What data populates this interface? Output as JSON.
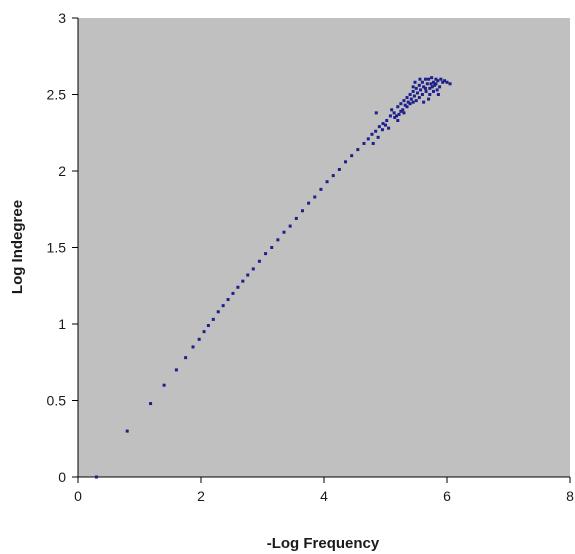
{
  "chart_data": {
    "type": "scatter",
    "title": "",
    "xlabel": "-Log Frequency",
    "ylabel": "Log Indegree",
    "xlim": [
      0,
      8
    ],
    "ylim": [
      0,
      3
    ],
    "x_ticks": [
      0,
      2,
      4,
      6,
      8
    ],
    "y_ticks": [
      0,
      0.5,
      1,
      1.5,
      2,
      2.5,
      3
    ],
    "x_tick_labels": [
      "0",
      "2",
      "4",
      "6",
      "8"
    ],
    "y_tick_labels": [
      "0",
      "0.5",
      "1",
      "1.5",
      "2",
      "2.5",
      "3"
    ],
    "grid": false,
    "legend": "none",
    "plot_background": "#c0c0c0",
    "marker_color": "#1c1f8c",
    "series": [
      {
        "points": [
          [
            0.3,
            0.0
          ],
          [
            0.8,
            0.3
          ],
          [
            1.18,
            0.48
          ],
          [
            1.4,
            0.6
          ],
          [
            1.6,
            0.7
          ],
          [
            1.75,
            0.78
          ],
          [
            1.87,
            0.85
          ],
          [
            1.97,
            0.9
          ],
          [
            2.05,
            0.95
          ],
          [
            2.12,
            0.99
          ],
          [
            2.2,
            1.03
          ],
          [
            2.28,
            1.08
          ],
          [
            2.36,
            1.12
          ],
          [
            2.44,
            1.16
          ],
          [
            2.52,
            1.2
          ],
          [
            2.6,
            1.24
          ],
          [
            2.68,
            1.28
          ],
          [
            2.76,
            1.32
          ],
          [
            2.85,
            1.36
          ],
          [
            2.95,
            1.41
          ],
          [
            3.05,
            1.46
          ],
          [
            3.15,
            1.5
          ],
          [
            3.25,
            1.55
          ],
          [
            3.35,
            1.6
          ],
          [
            3.45,
            1.64
          ],
          [
            3.55,
            1.69
          ],
          [
            3.65,
            1.74
          ],
          [
            3.75,
            1.79
          ],
          [
            3.85,
            1.83
          ],
          [
            3.95,
            1.88
          ],
          [
            4.05,
            1.93
          ],
          [
            4.15,
            1.97
          ],
          [
            4.25,
            2.01
          ],
          [
            4.35,
            2.06
          ],
          [
            4.45,
            2.1
          ],
          [
            4.55,
            2.14
          ],
          [
            4.65,
            2.18
          ],
          [
            4.72,
            2.21
          ],
          [
            4.78,
            2.24
          ],
          [
            4.84,
            2.26
          ],
          [
            4.9,
            2.29
          ],
          [
            4.96,
            2.31
          ],
          [
            5.02,
            2.33
          ],
          [
            5.08,
            2.36
          ],
          [
            5.14,
            2.38
          ],
          [
            4.8,
            2.18
          ],
          [
            4.88,
            2.22
          ],
          [
            4.95,
            2.27
          ],
          [
            5.0,
            2.3
          ],
          [
            5.05,
            2.28
          ],
          [
            5.1,
            2.4
          ],
          [
            5.15,
            2.35
          ],
          [
            5.2,
            2.42
          ],
          [
            5.22,
            2.37
          ],
          [
            5.25,
            2.44
          ],
          [
            5.28,
            2.4
          ],
          [
            5.3,
            2.46
          ],
          [
            5.32,
            2.43
          ],
          [
            5.35,
            2.48
          ],
          [
            5.37,
            2.45
          ],
          [
            5.4,
            2.5
          ],
          [
            5.42,
            2.47
          ],
          [
            5.45,
            2.52
          ],
          [
            5.47,
            2.49
          ],
          [
            5.5,
            2.54
          ],
          [
            5.52,
            2.51
          ],
          [
            5.55,
            2.56
          ],
          [
            5.57,
            2.53
          ],
          [
            5.6,
            2.58
          ],
          [
            5.62,
            2.55
          ],
          [
            5.65,
            2.6
          ],
          [
            5.68,
            2.57
          ],
          [
            5.7,
            2.6
          ],
          [
            5.72,
            2.54
          ],
          [
            5.75,
            2.61
          ],
          [
            5.78,
            2.58
          ],
          [
            5.8,
            2.56
          ],
          [
            5.82,
            2.6
          ],
          [
            5.85,
            2.59
          ],
          [
            5.88,
            2.55
          ],
          [
            5.9,
            2.6
          ],
          [
            5.93,
            2.58
          ],
          [
            5.96,
            2.59
          ],
          [
            6.0,
            2.58
          ],
          [
            6.05,
            2.57
          ],
          [
            5.35,
            2.42
          ],
          [
            5.45,
            2.45
          ],
          [
            5.55,
            2.48
          ],
          [
            5.6,
            2.5
          ],
          [
            5.66,
            2.52
          ],
          [
            5.72,
            2.5
          ],
          [
            5.78,
            2.52
          ],
          [
            5.84,
            2.53
          ],
          [
            5.5,
            2.46
          ],
          [
            5.4,
            2.44
          ],
          [
            5.25,
            2.39
          ],
          [
            5.18,
            2.36
          ],
          [
            5.56,
            2.6
          ],
          [
            5.48,
            2.58
          ],
          [
            5.62,
            2.45
          ],
          [
            5.7,
            2.47
          ],
          [
            5.76,
            2.55
          ],
          [
            5.86,
            2.5
          ],
          [
            5.2,
            2.33
          ],
          [
            5.3,
            2.38
          ],
          [
            4.85,
            2.38
          ],
          [
            5.45,
            2.55
          ],
          [
            5.65,
            2.54
          ],
          [
            5.74,
            2.57
          ],
          [
            5.82,
            2.57
          ]
        ]
      }
    ]
  }
}
